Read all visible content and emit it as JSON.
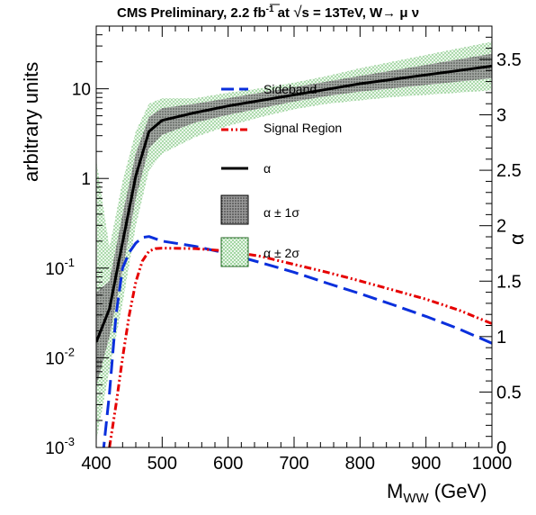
{
  "title": {
    "part1": "CMS Preliminary, 2.2 fb",
    "sup": "-1",
    "part2": " at ",
    "sqrt_symbol": "√",
    "part3": "s = 13TeV, W→ μ ν"
  },
  "axes": {
    "ylabel": "arbitrary units",
    "xlabel_main": "M",
    "xlabel_sub": "WW",
    "xlabel_unit": " (GeV)",
    "ylabel_right": "α"
  },
  "legend": {
    "sideband": "Sideband",
    "signal_region": "Signal Region",
    "alpha": "α",
    "alpha_1sigma": "α ± 1σ",
    "alpha_2sigma": "α ± 2σ"
  },
  "colors": {
    "sideband": "#0a2fdc",
    "signal_region": "#e60000",
    "alpha": "#000000",
    "band_1sigma": "#555555",
    "band_2sigma": "#bfe3bf"
  },
  "chart_data": {
    "type": "line",
    "title": "CMS Preliminary, 2.2 fb-1 at √s = 13TeV, W→ μ ν",
    "xlabel": "MWW (GeV)",
    "ylabel": "arbitrary units",
    "ylabel_right": "α",
    "xlim": [
      400,
      1000
    ],
    "ylim": [
      0.001,
      50
    ],
    "y_scale": "log",
    "ylim_right": [
      0,
      3.8
    ],
    "legend_position": "top-center",
    "grid": false,
    "x_ticks": [
      "400",
      "500",
      "600",
      "700",
      "800",
      "900",
      "1000"
    ],
    "y_ticks_left": [
      {
        "value": 0.001,
        "mant": "10",
        "exp": "-3"
      },
      {
        "value": 0.01,
        "mant": "10",
        "exp": "-2"
      },
      {
        "value": 0.1,
        "mant": "10",
        "exp": "-1"
      },
      {
        "value": 1,
        "mant": "1",
        "exp": ""
      },
      {
        "value": 10,
        "mant": "10",
        "exp": ""
      }
    ],
    "y_ticks_right": [
      "0",
      "0.5",
      "1",
      "1.5",
      "2",
      "2.5",
      "3",
      "3.5"
    ],
    "series": [
      {
        "name": "Sideband",
        "axis": "left",
        "x": [
          410,
          420,
          430,
          440,
          450,
          460,
          470,
          480,
          500,
          550,
          600,
          650,
          700,
          750,
          800,
          850,
          900,
          950,
          1000
        ],
        "y": [
          0.0008,
          0.004,
          0.03,
          0.1,
          0.15,
          0.19,
          0.22,
          0.225,
          0.2,
          0.175,
          0.145,
          0.115,
          0.09,
          0.068,
          0.052,
          0.039,
          0.029,
          0.021,
          0.0145
        ]
      },
      {
        "name": "Signal Region",
        "axis": "left",
        "x": [
          420,
          430,
          440,
          450,
          460,
          470,
          480,
          490,
          500,
          550,
          600,
          650,
          700,
          750,
          800,
          850,
          900,
          950,
          1000
        ],
        "y": [
          0.001,
          0.003,
          0.01,
          0.03,
          0.07,
          0.12,
          0.155,
          0.165,
          0.167,
          0.165,
          0.155,
          0.135,
          0.11,
          0.09,
          0.072,
          0.057,
          0.045,
          0.034,
          0.024
        ]
      },
      {
        "name": "α",
        "axis": "right",
        "x": [
          400,
          420,
          440,
          460,
          480,
          500,
          550,
          600,
          650,
          700,
          750,
          800,
          850,
          900,
          950,
          1000
        ],
        "y": [
          0.95,
          1.25,
          1.85,
          2.45,
          2.85,
          2.95,
          3.02,
          3.08,
          3.13,
          3.18,
          3.23,
          3.28,
          3.32,
          3.36,
          3.4,
          3.44
        ]
      }
    ],
    "bands": [
      {
        "name": "α ± 2σ",
        "x": [
          400,
          420,
          440,
          460,
          480,
          500,
          550,
          600,
          650,
          700,
          750,
          800,
          850,
          900,
          950,
          1000
        ],
        "lo": [
          0.05,
          0.7,
          1.3,
          2.0,
          2.5,
          2.65,
          2.8,
          2.9,
          2.98,
          3.05,
          3.1,
          3.13,
          3.16,
          3.18,
          3.2,
          3.22
        ],
        "hi": [
          2.6,
          1.8,
          2.4,
          2.85,
          3.1,
          3.15,
          3.15,
          3.2,
          3.24,
          3.29,
          3.35,
          3.42,
          3.48,
          3.54,
          3.6,
          3.66
        ]
      },
      {
        "name": "α ± 1σ",
        "x": [
          400,
          420,
          440,
          460,
          480,
          500,
          550,
          600,
          650,
          700,
          750,
          800,
          850,
          900,
          950,
          1000
        ],
        "lo": [
          0.55,
          1.0,
          1.6,
          2.25,
          2.7,
          2.82,
          2.93,
          3.0,
          3.06,
          3.12,
          3.17,
          3.21,
          3.24,
          3.27,
          3.3,
          3.33
        ],
        "hi": [
          1.4,
          1.5,
          2.1,
          2.65,
          2.98,
          3.06,
          3.1,
          3.15,
          3.2,
          3.25,
          3.3,
          3.35,
          3.4,
          3.45,
          3.5,
          3.55
        ]
      }
    ]
  }
}
